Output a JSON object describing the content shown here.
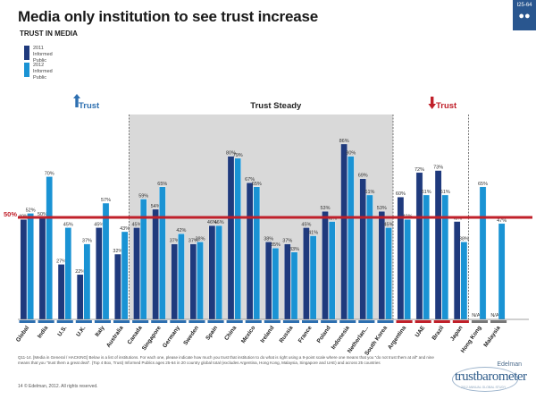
{
  "header": {
    "title": "Media only institution to see trust increase",
    "subtitle": "TRUST IN MEDIA",
    "slide_id": "I25-64"
  },
  "legend": [
    {
      "year": "2011",
      "label": "Informed Public",
      "color": "#1f3a7d"
    },
    {
      "year": "2012",
      "label": "Informed Public",
      "color": "#1a93d4"
    }
  ],
  "chart_data": {
    "type": "bar",
    "title": "TRUST IN MEDIA",
    "categories": [
      "Global",
      "India",
      "U.S.",
      "U.K.",
      "Italy",
      "Australia",
      "Canada",
      "Singapore",
      "Germany",
      "Sweden",
      "Spain",
      "China",
      "Mexico",
      "Ireland",
      "Russia",
      "France",
      "Poland",
      "Indonesia",
      "Netherlands",
      "South Korea",
      "Argentina",
      "UAE",
      "Brazil",
      "Japan",
      "Hong Kong",
      "Malaysia"
    ],
    "category_labels": [
      "Global",
      "India",
      "U.S.",
      "U.K.",
      "Italy",
      "Australia",
      "Canada",
      "Singapore",
      "Germany",
      "Sweden",
      "Spain",
      "China",
      "Mexico",
      "Ireland",
      "Russia",
      "France",
      "Poland",
      "Indonesia",
      "Netherlan...",
      "South Korea",
      "Argentina",
      "UAE",
      "Brazil",
      "Japan",
      "Hong Kong",
      "Malaysia"
    ],
    "series": [
      {
        "name": "2011 Informed Public",
        "color": "#1f3a7d",
        "values": [
          49,
          50,
          27,
          22,
          45,
          32,
          45,
          54,
          37,
          37,
          46,
          80,
          67,
          38,
          37,
          45,
          53,
          86,
          69,
          53,
          60,
          72,
          73,
          48,
          null,
          null
        ],
        "value_labels": [
          "49%",
          "50%",
          "27%",
          "22%",
          "45%",
          "32%",
          "45%",
          "54%",
          "37%",
          "37%",
          "46%",
          "80%",
          "67%",
          "38%",
          "37%",
          "45%",
          "53%",
          "86%",
          "69%",
          "53%",
          "60%",
          "72%",
          "73%",
          "48%",
          "N/A",
          "N/A"
        ]
      },
      {
        "name": "2012 Informed Public",
        "color": "#1a93d4",
        "values": [
          52,
          70,
          45,
          37,
          57,
          43,
          59,
          65,
          42,
          38,
          46,
          79,
          65,
          35,
          33,
          41,
          48,
          80,
          61,
          45,
          49,
          61,
          61,
          38,
          65,
          47
        ],
        "value_labels": [
          "52%",
          "70%",
          "45%",
          "37%",
          "57%",
          "43%",
          "59%",
          "65%",
          "42%",
          "38%",
          "46%",
          "79%",
          "65%",
          "35%",
          "33%",
          "41%",
          "48%",
          "80%",
          "61%",
          "45%",
          "49%",
          "61%",
          "61%",
          "38%",
          "65%",
          "47%"
        ]
      }
    ],
    "ylim": [
      0,
      100
    ],
    "reference_line": {
      "value": 50,
      "label": "50%",
      "color": "#c0202a"
    },
    "groups": [
      {
        "label": "Trust",
        "arrow": "up",
        "color": "#2d6fb0",
        "from": 0,
        "to": 5,
        "underline_color": "#2d6fb0"
      },
      {
        "label": "Trust Steady",
        "arrow": "none",
        "color": "#222222",
        "from": 6,
        "to": 19,
        "underline_color": "#2d6fb0"
      },
      {
        "label": "Trust",
        "arrow": "down",
        "color": "#c0202a",
        "from": 20,
        "to": 23,
        "underline_color": "#c0202a"
      }
    ],
    "ungrouped_underline_color": "#777777",
    "grid": false
  },
  "footnote": "Q11-14. [Media in General / HACKING] Below is a list of institutions. For each one, please indicate how much you trust that institution to do what is right using a 9-point scale where one means that you \"do not trust them at all\" and nine means that you \"trust them a great deal\". (Top 4 Box, Trust) Informed Publics ages 25-64 in 20 country global total (excludes Argentina, Hong Kong, Malaysia, Singapore and UAE) and across 25 countries",
  "copyright": "14   © Edelman, 2012. All rights reserved.",
  "logo": {
    "brand_top": "Edelman",
    "brand_main": "trustbarometer",
    "tagline": "2012 ANNUAL GLOBAL STUDY"
  }
}
